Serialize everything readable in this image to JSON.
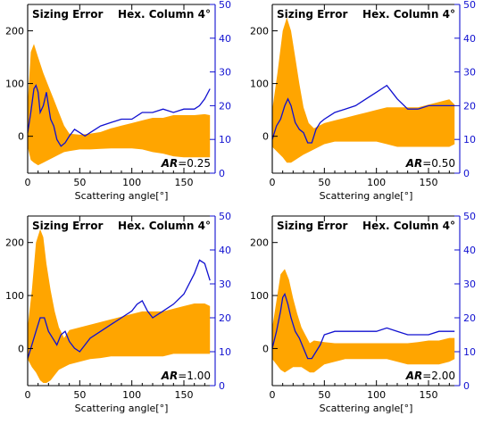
{
  "chart_data": [
    {
      "type": "area",
      "title_left": "Sizing Error",
      "title_right": "Hex. Column 4°",
      "xlabel": "Scattering angle[°]",
      "annotation": {
        "label": "AR",
        "value": "=0.25"
      },
      "xlim": [
        0,
        180
      ],
      "ylim": [
        -70,
        250
      ],
      "y2lim": [
        0,
        50
      ],
      "xticks": [
        0,
        50,
        100,
        150
      ],
      "yticks": [
        0,
        100,
        200
      ],
      "y2ticks": [
        0,
        10,
        20,
        30,
        40,
        50
      ],
      "colors": {
        "band": "#ffa500",
        "line": "#1010d0"
      },
      "band": {
        "x": [
          0,
          3,
          6,
          10,
          15,
          20,
          25,
          30,
          35,
          40,
          50,
          60,
          70,
          80,
          90,
          100,
          110,
          120,
          130,
          140,
          150,
          160,
          170,
          175
        ],
        "upper": [
          60,
          160,
          175,
          150,
          120,
          95,
          70,
          45,
          20,
          5,
          3,
          5,
          8,
          15,
          20,
          25,
          30,
          35,
          35,
          40,
          40,
          40,
          42,
          40
        ],
        "lower": [
          -20,
          -45,
          -50,
          -55,
          -50,
          -45,
          -40,
          -35,
          -30,
          -28,
          -25,
          -25,
          -24,
          -23,
          -23,
          -23,
          -25,
          -30,
          -33,
          -38,
          -40,
          -40,
          -40,
          -40
        ]
      },
      "series": [
        {
          "x": [
            0,
            3,
            6,
            8,
            10,
            12,
            15,
            18,
            20,
            22,
            25,
            28,
            32,
            36,
            40,
            45,
            50,
            55,
            60,
            70,
            80,
            90,
            100,
            110,
            120,
            130,
            140,
            150,
            160,
            165,
            170,
            175
          ],
          "y2": [
            12,
            18,
            25,
            26,
            24,
            18,
            20,
            24,
            20,
            16,
            14,
            10,
            8,
            9,
            11,
            13,
            12,
            11,
            12,
            14,
            15,
            16,
            16,
            18,
            18,
            19,
            18,
            19,
            19,
            20,
            22,
            25
          ]
        }
      ]
    },
    {
      "type": "area",
      "title_left": "Sizing Error",
      "title_right": "Hex. Column 4°",
      "xlabel": "Scattering angle[°]",
      "annotation": {
        "label": "AR",
        "value": "=0.50"
      },
      "xlim": [
        0,
        180
      ],
      "ylim": [
        -70,
        250
      ],
      "y2lim": [
        0,
        50
      ],
      "xticks": [
        0,
        50,
        100,
        150
      ],
      "yticks": [
        0,
        100,
        200
      ],
      "y2ticks": [
        0,
        10,
        20,
        30,
        40,
        50
      ],
      "colors": {
        "band": "#ffa500",
        "line": "#1010d0"
      },
      "band": {
        "x": [
          0,
          5,
          10,
          14,
          18,
          22,
          26,
          30,
          35,
          40,
          50,
          60,
          70,
          80,
          90,
          100,
          110,
          120,
          130,
          140,
          150,
          160,
          170,
          175
        ],
        "upper": [
          50,
          120,
          200,
          225,
          200,
          150,
          100,
          55,
          25,
          15,
          25,
          30,
          35,
          40,
          45,
          50,
          55,
          55,
          55,
          55,
          60,
          65,
          70,
          60
        ],
        "lower": [
          -20,
          -30,
          -40,
          -50,
          -50,
          -45,
          -40,
          -35,
          -30,
          -25,
          -15,
          -10,
          -10,
          -10,
          -10,
          -10,
          -15,
          -20,
          -20,
          -20,
          -20,
          -20,
          -20,
          -15
        ]
      },
      "series": [
        {
          "x": [
            0,
            4,
            8,
            12,
            15,
            18,
            22,
            26,
            30,
            34,
            38,
            42,
            46,
            50,
            55,
            60,
            70,
            80,
            90,
            100,
            105,
            110,
            115,
            120,
            130,
            140,
            150,
            160,
            170,
            175
          ],
          "y2": [
            10,
            14,
            16,
            20,
            22,
            20,
            15,
            13,
            12,
            9,
            9,
            13,
            15,
            16,
            17,
            18,
            19,
            20,
            22,
            24,
            25,
            26,
            24,
            22,
            19,
            19,
            20,
            20,
            20,
            20
          ]
        }
      ]
    },
    {
      "type": "area",
      "title_left": "Sizing Error",
      "title_right": "Hex. Column 4°",
      "xlabel": "Scattering angle[°]",
      "annotation": {
        "label": "AR",
        "value": "=1.00"
      },
      "xlim": [
        0,
        180
      ],
      "ylim": [
        -70,
        250
      ],
      "y2lim": [
        0,
        50
      ],
      "xticks": [
        0,
        50,
        100,
        150
      ],
      "yticks": [
        0,
        100,
        200
      ],
      "y2ticks": [
        0,
        10,
        20,
        30,
        40,
        50
      ],
      "colors": {
        "band": "#ffa500",
        "line": "#1010d0"
      },
      "band": {
        "x": [
          0,
          4,
          8,
          12,
          15,
          18,
          22,
          26,
          30,
          35,
          40,
          50,
          60,
          70,
          80,
          90,
          100,
          110,
          120,
          130,
          140,
          150,
          160,
          170,
          175
        ],
        "upper": [
          40,
          110,
          200,
          225,
          210,
          160,
          110,
          70,
          40,
          20,
          35,
          40,
          45,
          50,
          55,
          60,
          65,
          70,
          70,
          70,
          75,
          80,
          85,
          85,
          80
        ],
        "lower": [
          -20,
          -35,
          -45,
          -60,
          -65,
          -65,
          -60,
          -50,
          -40,
          -35,
          -30,
          -25,
          -20,
          -18,
          -15,
          -15,
          -15,
          -15,
          -15,
          -15,
          -10,
          -10,
          -10,
          -10,
          -10
        ]
      },
      "series": [
        {
          "x": [
            0,
            4,
            8,
            12,
            16,
            20,
            24,
            28,
            32,
            36,
            40,
            45,
            50,
            55,
            60,
            70,
            80,
            90,
            100,
            105,
            110,
            115,
            120,
            130,
            140,
            150,
            160,
            165,
            170,
            175
          ],
          "y2": [
            8,
            12,
            16,
            20,
            20,
            16,
            14,
            12,
            15,
            16,
            13,
            11,
            10,
            12,
            14,
            16,
            18,
            20,
            22,
            24,
            25,
            22,
            20,
            22,
            24,
            27,
            33,
            37,
            36,
            31
          ]
        }
      ]
    },
    {
      "type": "area",
      "title_left": "Sizing Error",
      "title_right": "Hex. Column 4°",
      "xlabel": "Scattering angle[°]",
      "annotation": {
        "label": "AR",
        "value": "=2.00"
      },
      "xlim": [
        0,
        180
      ],
      "ylim": [
        -70,
        250
      ],
      "y2lim": [
        0,
        50
      ],
      "xticks": [
        0,
        50,
        100,
        150
      ],
      "yticks": [
        0,
        100,
        200
      ],
      "y2ticks": [
        0,
        10,
        20,
        30,
        40,
        50
      ],
      "colors": {
        "band": "#ffa500",
        "line": "#1010d0"
      },
      "band": {
        "x": [
          0,
          4,
          8,
          12,
          16,
          20,
          24,
          28,
          32,
          36,
          40,
          50,
          60,
          70,
          80,
          90,
          100,
          110,
          120,
          130,
          140,
          150,
          160,
          170,
          175
        ],
        "upper": [
          40,
          90,
          140,
          150,
          130,
          95,
          65,
          40,
          25,
          10,
          15,
          12,
          10,
          10,
          10,
          10,
          10,
          10,
          10,
          10,
          12,
          15,
          15,
          20,
          20
        ],
        "lower": [
          -20,
          -30,
          -40,
          -45,
          -40,
          -35,
          -35,
          -35,
          -40,
          -45,
          -45,
          -30,
          -25,
          -20,
          -20,
          -20,
          -20,
          -20,
          -25,
          -30,
          -30,
          -30,
          -30,
          -25,
          -20
        ]
      },
      "series": [
        {
          "x": [
            0,
            4,
            8,
            10,
            12,
            15,
            18,
            22,
            26,
            30,
            34,
            38,
            42,
            46,
            50,
            60,
            70,
            80,
            90,
            100,
            110,
            120,
            130,
            140,
            150,
            160,
            170,
            175
          ],
          "y2": [
            11,
            16,
            22,
            26,
            27,
            24,
            20,
            16,
            14,
            11,
            8,
            8,
            10,
            12,
            15,
            16,
            16,
            16,
            16,
            16,
            17,
            16,
            15,
            15,
            15,
            16,
            16,
            16
          ]
        }
      ]
    }
  ]
}
